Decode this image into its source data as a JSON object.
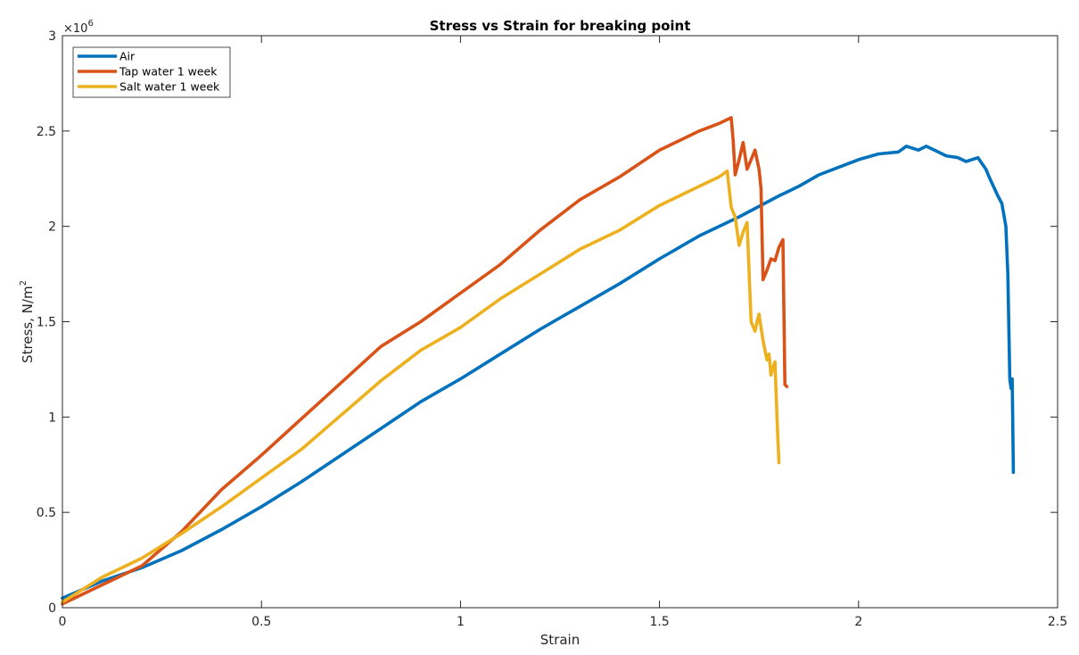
{
  "chart_data": {
    "type": "line",
    "title": "Stress vs Strain for breaking point",
    "xlabel": "Strain",
    "ylabel": "Stress, N/m",
    "ylabel_superscript": "2",
    "y_multiplier": "×10",
    "y_multiplier_exponent": "6",
    "xlim": [
      0,
      2.5
    ],
    "ylim": [
      0,
      3000000
    ],
    "x_ticks": [
      0,
      0.5,
      1,
      1.5,
      2,
      2.5
    ],
    "x_tick_labels": [
      "0",
      "0.5",
      "1",
      "1.5",
      "2",
      "2.5"
    ],
    "y_ticks": [
      0,
      500000,
      1000000,
      1500000,
      2000000,
      2500000,
      3000000
    ],
    "y_tick_labels": [
      "0",
      "0.5",
      "1",
      "1.5",
      "2",
      "2.5",
      "3"
    ],
    "grid": false,
    "legend_position": "top-left",
    "series": [
      {
        "name": "Air",
        "color": "#0072BD",
        "x": [
          0,
          0.1,
          0.2,
          0.3,
          0.4,
          0.5,
          0.6,
          0.7,
          0.8,
          0.9,
          1.0,
          1.1,
          1.2,
          1.3,
          1.4,
          1.5,
          1.6,
          1.7,
          1.8,
          1.85,
          1.9,
          1.95,
          2.0,
          2.05,
          2.1,
          2.12,
          2.15,
          2.17,
          2.2,
          2.22,
          2.25,
          2.27,
          2.3,
          2.32,
          2.33,
          2.35,
          2.36,
          2.37,
          2.375,
          2.38,
          2.383,
          2.386,
          2.389
        ],
        "y": [
          50000,
          140000,
          210000,
          300000,
          410000,
          530000,
          660000,
          800000,
          940000,
          1080000,
          1200000,
          1330000,
          1460000,
          1580000,
          1700000,
          1830000,
          1950000,
          2050000,
          2160000,
          2210000,
          2270000,
          2310000,
          2350000,
          2380000,
          2390000,
          2420000,
          2400000,
          2420000,
          2390000,
          2370000,
          2360000,
          2340000,
          2360000,
          2300000,
          2250000,
          2160000,
          2120000,
          2000000,
          1750000,
          1200000,
          1150000,
          1200000,
          710000
        ]
      },
      {
        "name": "Tap water 1 week",
        "color": "#D95319",
        "x": [
          0,
          0.1,
          0.2,
          0.3,
          0.4,
          0.5,
          0.6,
          0.7,
          0.8,
          0.9,
          1.0,
          1.1,
          1.2,
          1.3,
          1.4,
          1.5,
          1.6,
          1.65,
          1.68,
          1.685,
          1.69,
          1.7,
          1.71,
          1.72,
          1.73,
          1.74,
          1.75,
          1.755,
          1.76,
          1.77,
          1.78,
          1.79,
          1.8,
          1.81,
          1.815,
          1.82
        ],
        "y": [
          20000,
          120000,
          220000,
          400000,
          620000,
          800000,
          990000,
          1180000,
          1370000,
          1500000,
          1650000,
          1800000,
          1980000,
          2140000,
          2260000,
          2400000,
          2500000,
          2540000,
          2570000,
          2450000,
          2270000,
          2350000,
          2440000,
          2300000,
          2350000,
          2400000,
          2300000,
          2200000,
          1720000,
          1770000,
          1830000,
          1820000,
          1890000,
          1930000,
          1170000,
          1160000
        ]
      },
      {
        "name": "Salt water 1 week",
        "color": "#EDB120",
        "x": [
          0,
          0.1,
          0.2,
          0.3,
          0.4,
          0.5,
          0.6,
          0.7,
          0.8,
          0.9,
          1.0,
          1.1,
          1.2,
          1.3,
          1.4,
          1.5,
          1.6,
          1.65,
          1.67,
          1.68,
          1.69,
          1.7,
          1.71,
          1.72,
          1.73,
          1.74,
          1.745,
          1.75,
          1.76,
          1.77,
          1.775,
          1.78,
          1.785,
          1.79,
          1.795,
          1.8
        ],
        "y": [
          30000,
          160000,
          260000,
          390000,
          530000,
          680000,
          830000,
          1010000,
          1190000,
          1350000,
          1470000,
          1620000,
          1750000,
          1880000,
          1980000,
          2110000,
          2210000,
          2260000,
          2290000,
          2100000,
          2050000,
          1900000,
          1970000,
          2020000,
          1500000,
          1450000,
          1500000,
          1540000,
          1400000,
          1300000,
          1330000,
          1220000,
          1260000,
          1290000,
          1000000,
          760000
        ]
      }
    ]
  }
}
